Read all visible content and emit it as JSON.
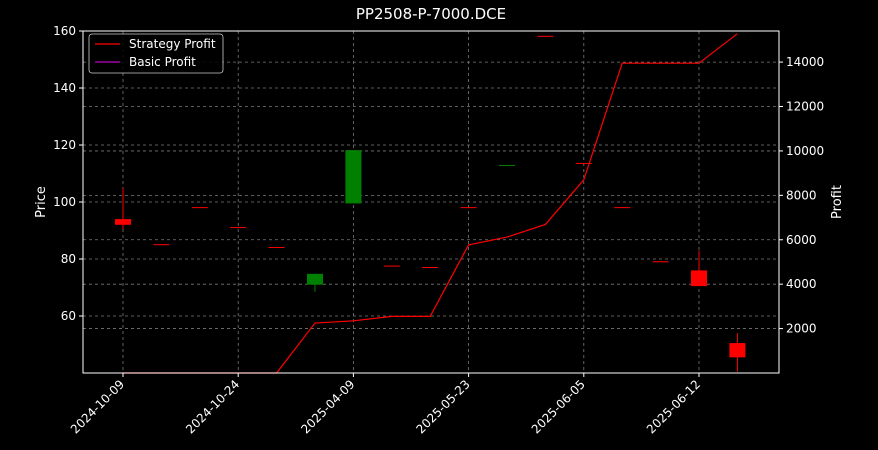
{
  "chart_data": {
    "type": "candlestick",
    "title": "PP2508-P-7000.DCE",
    "ylabel": "Price",
    "y2label": "Profit",
    "ylim": [
      40,
      160
    ],
    "y2lim": [
      0,
      15400
    ],
    "yticks": [
      60,
      80,
      100,
      120,
      140,
      160
    ],
    "y2ticks": [
      2000,
      4000,
      6000,
      8000,
      10000,
      12000,
      14000
    ],
    "grid": true,
    "legend_position": "top-left",
    "x_tick_labels": [
      "2024-10-09",
      "2024-10-24",
      "2025-04-09",
      "2025-05-23",
      "2025-06-05",
      "2025-06-12"
    ],
    "x_tick_indices": [
      0,
      3,
      6,
      9,
      12,
      15
    ],
    "up_color": "#008000",
    "down_color": "#ff0000",
    "candles": [
      {
        "index": 0,
        "open": 94.0,
        "close": 92.0,
        "high": 105.0,
        "low": 90.5
      },
      {
        "index": 1,
        "open": 85.2,
        "close": 85.0,
        "high": 85.2,
        "low": 85.0
      },
      {
        "index": 2,
        "open": 98.2,
        "close": 98.0,
        "high": 98.2,
        "low": 98.0
      },
      {
        "index": 3,
        "open": 91.2,
        "close": 91.0,
        "high": 91.2,
        "low": 91.0
      },
      {
        "index": 4,
        "open": 84.2,
        "close": 84.0,
        "high": 84.2,
        "low": 84.0
      },
      {
        "index": 5,
        "open": 71.0,
        "close": 74.8,
        "high": 74.8,
        "low": 68.5
      },
      {
        "index": 6,
        "open": 99.5,
        "close": 118.2,
        "high": 118.2,
        "low": 99.5
      },
      {
        "index": 7,
        "open": 77.7,
        "close": 77.5,
        "high": 77.7,
        "low": 77.5
      },
      {
        "index": 8,
        "open": 77.2,
        "close": 77.0,
        "high": 77.2,
        "low": 77.0
      },
      {
        "index": 9,
        "open": 98.2,
        "close": 98.0,
        "high": 98.2,
        "low": 98.0
      },
      {
        "index": 10,
        "open": 112.8,
        "close": 113.0,
        "high": 113.0,
        "low": 112.8
      },
      {
        "index": 11,
        "open": 158.3,
        "close": 158.1,
        "high": 158.3,
        "low": 158.1
      },
      {
        "index": 12,
        "open": 113.7,
        "close": 113.5,
        "high": 113.7,
        "low": 113.5
      },
      {
        "index": 13,
        "open": 98.2,
        "close": 98.0,
        "high": 98.2,
        "low": 98.0
      },
      {
        "index": 14,
        "open": 79.2,
        "close": 79.0,
        "high": 79.2,
        "low": 79.0
      },
      {
        "index": 15,
        "open": 76.0,
        "close": 70.5,
        "high": 83.0,
        "low": 70.5
      },
      {
        "index": 16,
        "open": 50.5,
        "close": 45.5,
        "high": 54.0,
        "low": 40.5
      }
    ],
    "series": [
      {
        "name": "Strategy Profit",
        "color": "#ff0000",
        "x": [
          0,
          1,
          2,
          3,
          4,
          5,
          6,
          7,
          8,
          9,
          10,
          11,
          12,
          13,
          14,
          15,
          16
        ],
        "values": [
          0,
          0,
          0,
          0,
          0,
          2250,
          2350,
          2550,
          2550,
          5770,
          6120,
          6690,
          8700,
          13950,
          13950,
          13950,
          15280
        ]
      },
      {
        "name": "Basic Profit",
        "color": "#bf00bf",
        "x": [],
        "values": []
      }
    ]
  }
}
